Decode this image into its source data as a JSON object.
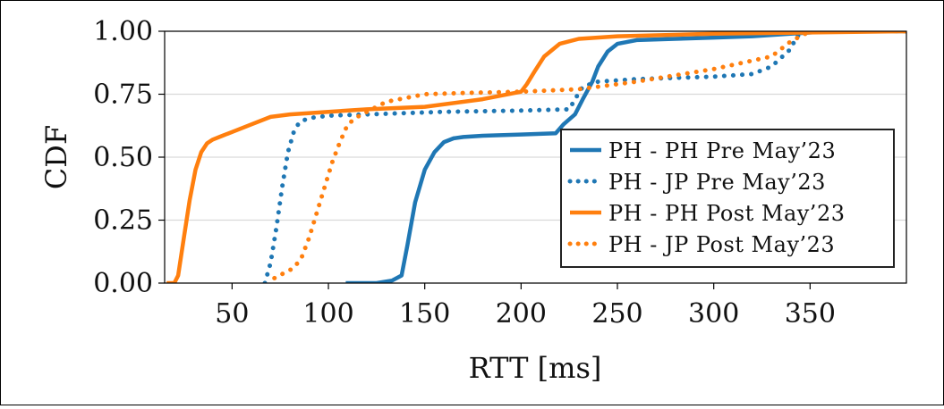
{
  "chart_data": {
    "type": "line",
    "title": "",
    "xlabel": "RTT [ms]",
    "ylabel": "CDF",
    "xlim": [
      15,
      400
    ],
    "ylim": [
      0,
      1
    ],
    "xticks": [
      50,
      100,
      150,
      200,
      250,
      300,
      350
    ],
    "xtick_labels": [
      "50",
      "100",
      "150",
      "200",
      "250",
      "300",
      "350"
    ],
    "yticks": [
      0,
      0.25,
      0.5,
      0.75,
      1.0
    ],
    "ytick_labels": [
      "0.00",
      "0.25",
      "0.50",
      "0.75",
      "1.00"
    ],
    "grid": "horizontal",
    "legend_position": "center-right",
    "series": [
      {
        "name": "PH - PH Pre May’23",
        "color": "#1f77b4",
        "style": "solid",
        "x": [
          109,
          125,
          133,
          138,
          141,
          145,
          150,
          155,
          160,
          165,
          170,
          180,
          200,
          218,
          222,
          228,
          232,
          237,
          240,
          245,
          250,
          260,
          280,
          300,
          320,
          340,
          360,
          400
        ],
        "y": [
          0.0,
          0.0,
          0.01,
          0.03,
          0.15,
          0.32,
          0.45,
          0.52,
          0.56,
          0.575,
          0.58,
          0.585,
          0.59,
          0.595,
          0.63,
          0.67,
          0.73,
          0.8,
          0.86,
          0.92,
          0.95,
          0.965,
          0.97,
          0.975,
          0.98,
          0.99,
          1.0,
          1.0
        ]
      },
      {
        "name": "PH - JP Pre May’23",
        "color": "#1f77b4",
        "style": "dotted",
        "x": [
          67,
          70,
          73,
          76,
          79,
          82,
          85,
          90,
          100,
          120,
          160,
          200,
          225,
          228,
          232,
          240,
          260,
          300,
          320,
          330,
          340,
          343,
          350,
          400
        ],
        "y": [
          0.0,
          0.08,
          0.22,
          0.38,
          0.52,
          0.6,
          0.64,
          0.655,
          0.665,
          0.67,
          0.68,
          0.685,
          0.69,
          0.73,
          0.78,
          0.8,
          0.81,
          0.82,
          0.83,
          0.86,
          0.93,
          0.98,
          1.0,
          1.0
        ]
      },
      {
        "name": "PH - PH Post May’23",
        "color": "#ff7f0e",
        "style": "solid",
        "x": [
          16,
          20,
          22,
          25,
          28,
          31,
          34,
          37,
          40,
          45,
          50,
          60,
          70,
          80,
          100,
          120,
          150,
          180,
          200,
          203,
          207,
          212,
          220,
          230,
          250,
          300,
          350,
          400
        ],
        "y": [
          0.0,
          0.0,
          0.03,
          0.18,
          0.33,
          0.45,
          0.52,
          0.555,
          0.57,
          0.585,
          0.6,
          0.63,
          0.66,
          0.67,
          0.68,
          0.69,
          0.7,
          0.73,
          0.76,
          0.79,
          0.84,
          0.9,
          0.95,
          0.97,
          0.98,
          0.99,
          0.995,
          1.0
        ]
      },
      {
        "name": "PH - JP Post May’23",
        "color": "#ff7f0e",
        "style": "dotted",
        "x": [
          72,
          77,
          82,
          86,
          90,
          94,
          98,
          102,
          106,
          110,
          115,
          120,
          130,
          150,
          170,
          200,
          230,
          260,
          300,
          330,
          340,
          350,
          400
        ],
        "y": [
          0.02,
          0.04,
          0.06,
          0.1,
          0.18,
          0.28,
          0.38,
          0.48,
          0.56,
          0.63,
          0.66,
          0.68,
          0.72,
          0.75,
          0.755,
          0.76,
          0.77,
          0.8,
          0.85,
          0.9,
          0.96,
          1.0,
          1.0
        ]
      }
    ]
  }
}
